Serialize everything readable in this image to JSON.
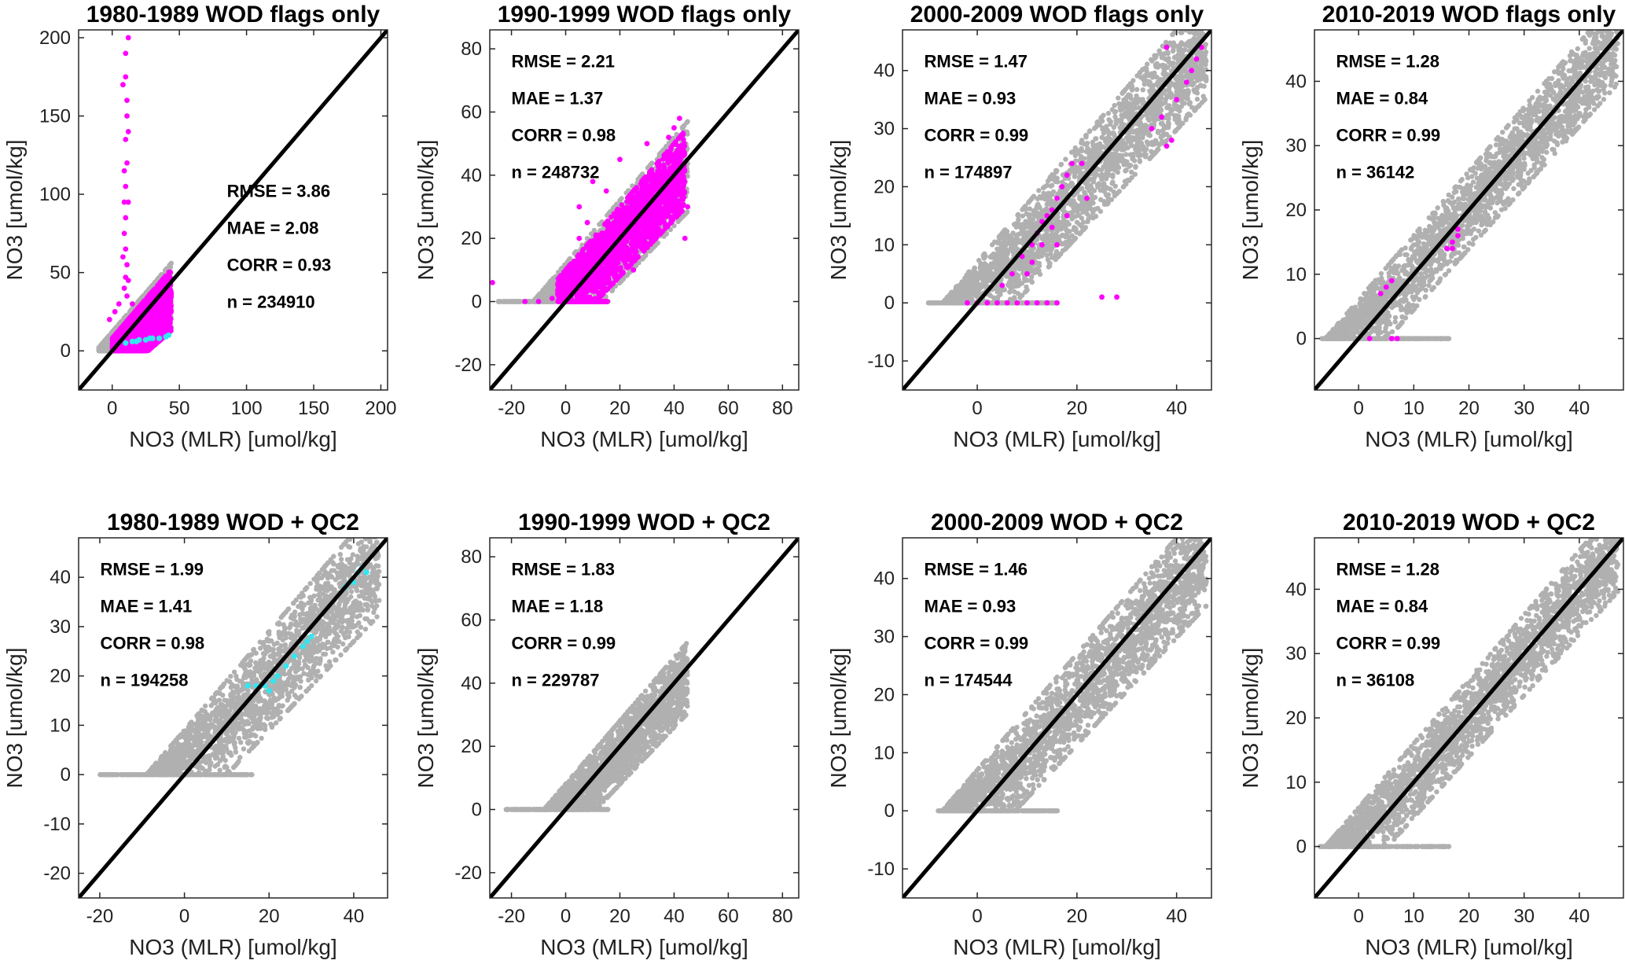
{
  "colors": {
    "background": "#ffffff",
    "all_points": "#b0b0b0",
    "wod_flagged": "#ff00ff",
    "qc_flagged": "#33e6f0",
    "one_to_one_line": "#000000",
    "frame": "#262626"
  },
  "chart_data": [
    {
      "type": "scatter",
      "title": "1980-1989 WOD flags only",
      "xlabel": "NO3 (MLR) [umol/kg]",
      "ylabel": "NO3 [umol/kg]",
      "xlim": [
        -25,
        205
      ],
      "ylim": [
        -25,
        205
      ],
      "xticks": [
        0,
        50,
        100,
        150,
        200
      ],
      "yticks": [
        0,
        50,
        100,
        150,
        200
      ],
      "grid": false,
      "reference_line": "1:1",
      "stats": {
        "rmse": "RMSE = 3.86",
        "mae": "MAE = 2.08",
        "corr": "CORR = 0.93",
        "n": "n = 234910"
      },
      "stats_position": "right",
      "gray_cloud": {
        "x0": -10,
        "x1": 44,
        "lower_slope": 0.75,
        "lower_offset": -18,
        "upper_slope": 1.0,
        "upper_offset": 12,
        "min_y": 0
      },
      "magenta_points": [
        [
          10,
          190
        ],
        [
          10,
          175
        ],
        [
          11,
          160
        ],
        [
          11,
          150
        ],
        [
          10,
          135
        ],
        [
          11,
          120
        ],
        [
          10,
          105
        ],
        [
          9,
          95
        ],
        [
          10,
          85
        ],
        [
          9,
          75
        ],
        [
          10,
          65
        ],
        [
          11,
          55
        ],
        [
          10,
          47
        ],
        [
          9,
          40
        ],
        [
          11,
          35
        ],
        [
          5,
          30
        ],
        [
          15,
          30
        ],
        [
          12,
          200
        ],
        [
          8,
          170
        ],
        [
          12,
          140
        ],
        [
          9,
          115
        ],
        [
          12,
          95
        ],
        [
          8,
          60
        ],
        [
          12,
          45
        ],
        [
          -2,
          20
        ],
        [
          2,
          25
        ]
      ],
      "magenta_cloud": {
        "x0": 0,
        "x1": 44,
        "lower_slope": 0.75,
        "lower_offset": -20,
        "upper_slope": 1.0,
        "upper_offset": 8,
        "min_y": 0
      },
      "cyan_points": [
        [
          10,
          5
        ],
        [
          15,
          6
        ],
        [
          20,
          7
        ],
        [
          25,
          7
        ],
        [
          30,
          8
        ],
        [
          35,
          8
        ],
        [
          40,
          9
        ],
        [
          42,
          10
        ],
        [
          18,
          6
        ],
        [
          28,
          8
        ]
      ]
    },
    {
      "type": "scatter",
      "title": "1990-1999 WOD flags only",
      "xlabel": "NO3 (MLR) [umol/kg]",
      "ylabel": "NO3 [umol/kg]",
      "xlim": [
        -28,
        86
      ],
      "ylim": [
        -28,
        86
      ],
      "xticks": [
        -20,
        0,
        20,
        40,
        60,
        80
      ],
      "yticks": [
        -20,
        0,
        20,
        40,
        60,
        80
      ],
      "grid": false,
      "reference_line": "1:1",
      "stats": {
        "rmse": "RMSE = 2.21",
        "mae": "MAE = 1.37",
        "corr": "CORR = 0.98",
        "n": "n = 248732"
      },
      "stats_position": "top-left",
      "gray_cloud": {
        "x0": -25,
        "x1": 45,
        "lower_slope": 0.9,
        "lower_offset": -12,
        "upper_slope": 1.0,
        "upper_offset": 12,
        "min_y": 0
      },
      "magenta_points": [
        [
          -27,
          6
        ],
        [
          -5,
          1
        ],
        [
          -10,
          0
        ],
        [
          -15,
          0
        ],
        [
          5,
          20
        ],
        [
          10,
          38
        ],
        [
          15,
          35
        ],
        [
          20,
          45
        ],
        [
          30,
          50
        ],
        [
          40,
          55
        ],
        [
          42,
          58
        ],
        [
          38,
          52
        ],
        [
          5,
          30
        ],
        [
          8,
          25
        ],
        [
          45,
          30
        ],
        [
          44,
          20
        ],
        [
          25,
          10
        ],
        [
          35,
          22
        ]
      ],
      "magenta_cloud": {
        "x0": -3,
        "x1": 44,
        "lower_slope": 0.9,
        "lower_offset": -10,
        "upper_slope": 1.0,
        "upper_offset": 10,
        "min_y": 0
      },
      "cyan_points": []
    },
    {
      "type": "scatter",
      "title": "2000-2009 WOD flags only",
      "xlabel": "NO3 (MLR) [umol/kg]",
      "ylabel": "NO3 [umol/kg]",
      "xlim": [
        -15,
        47
      ],
      "ylim": [
        -15,
        47
      ],
      "xticks": [
        0,
        20,
        40
      ],
      "yticks": [
        -10,
        0,
        10,
        20,
        30,
        40
      ],
      "grid": false,
      "reference_line": "1:1",
      "stats": {
        "rmse": "RMSE = 1.47",
        "mae": "MAE = 0.93",
        "corr": "CORR = 0.99",
        "n": "n = 174897"
      },
      "stats_position": "top-left",
      "gray_cloud": {
        "x0": -10,
        "x1": 46,
        "lower_slope": 0.92,
        "lower_offset": -7,
        "upper_slope": 1.0,
        "upper_offset": 7,
        "min_y": 0
      },
      "magenta_points": [
        [
          -2,
          0
        ],
        [
          0,
          0
        ],
        [
          2,
          0
        ],
        [
          4,
          0
        ],
        [
          6,
          0
        ],
        [
          8,
          0
        ],
        [
          10,
          0
        ],
        [
          12,
          0
        ],
        [
          14,
          0
        ],
        [
          16,
          0
        ],
        [
          5,
          3
        ],
        [
          7,
          5
        ],
        [
          9,
          8
        ],
        [
          11,
          10
        ],
        [
          12,
          12
        ],
        [
          13,
          14
        ],
        [
          14,
          15
        ],
        [
          15,
          16
        ],
        [
          16,
          18
        ],
        [
          17,
          20
        ],
        [
          18,
          22
        ],
        [
          19,
          24
        ],
        [
          15,
          13
        ],
        [
          13,
          10
        ],
        [
          11,
          7
        ],
        [
          10,
          5
        ],
        [
          16,
          10
        ],
        [
          18,
          15
        ],
        [
          35,
          30
        ],
        [
          37,
          32
        ],
        [
          40,
          35
        ],
        [
          42,
          38
        ],
        [
          44,
          42
        ],
        [
          43,
          40
        ],
        [
          38,
          44
        ],
        [
          45,
          44
        ],
        [
          39,
          28
        ],
        [
          38,
          27
        ],
        [
          25,
          1
        ],
        [
          28,
          1
        ],
        [
          21,
          24
        ],
        [
          22,
          18
        ]
      ],
      "magenta_cloud": null,
      "cyan_points": []
    },
    {
      "type": "scatter",
      "title": "2010-2019 WOD flags only",
      "xlabel": "NO3 (MLR) [umol/kg]",
      "ylabel": "NO3 [umol/kg]",
      "xlim": [
        -8,
        48
      ],
      "ylim": [
        -8,
        48
      ],
      "xticks": [
        0,
        10,
        20,
        30,
        40
      ],
      "yticks": [
        0,
        10,
        20,
        30,
        40
      ],
      "grid": false,
      "reference_line": "1:1",
      "stats": {
        "rmse": "RMSE = 1.28",
        "mae": "MAE = 0.84",
        "corr": "CORR = 0.99",
        "n": "n = 36142"
      },
      "stats_position": "top-left",
      "gray_cloud": {
        "x0": -7,
        "x1": 47,
        "lower_slope": 0.95,
        "lower_offset": -5,
        "upper_slope": 1.0,
        "upper_offset": 6,
        "min_y": 0
      },
      "magenta_points": [
        [
          4,
          7
        ],
        [
          5,
          8
        ],
        [
          6,
          9
        ],
        [
          17,
          15
        ],
        [
          18,
          16
        ],
        [
          18,
          17
        ],
        [
          17,
          14
        ],
        [
          16,
          14
        ],
        [
          2,
          0
        ],
        [
          6,
          0
        ],
        [
          7,
          0
        ]
      ],
      "magenta_cloud": null,
      "cyan_points": []
    },
    {
      "type": "scatter",
      "title": "1980-1989 WOD + QC2",
      "xlabel": "NO3 (MLR) [umol/kg]",
      "ylabel": "NO3 [umol/kg]",
      "xlim": [
        -25,
        48
      ],
      "ylim": [
        -25,
        48
      ],
      "xticks": [
        -20,
        0,
        20,
        40
      ],
      "yticks": [
        -20,
        -10,
        0,
        10,
        20,
        30,
        40
      ],
      "grid": false,
      "reference_line": "1:1",
      "stats": {
        "rmse": "RMSE = 1.99",
        "mae": "MAE = 1.41",
        "corr": "CORR = 0.98",
        "n": "n = 194258"
      },
      "stats_position": "top-left",
      "gray_cloud": {
        "x0": -20,
        "x1": 46,
        "lower_slope": 0.9,
        "lower_offset": -9,
        "upper_slope": 1.0,
        "upper_offset": 9,
        "min_y": 0
      },
      "magenta_points": [],
      "magenta_cloud": null,
      "cyan_points": [
        [
          15,
          18
        ],
        [
          17,
          18
        ],
        [
          19,
          18
        ],
        [
          20,
          17
        ],
        [
          21,
          19
        ],
        [
          22,
          20
        ],
        [
          24,
          22
        ],
        [
          26,
          24
        ],
        [
          28,
          26
        ],
        [
          29,
          27
        ],
        [
          30,
          28
        ],
        [
          38,
          38
        ],
        [
          39,
          39
        ],
        [
          40,
          39
        ],
        [
          41,
          41
        ],
        [
          42,
          42
        ],
        [
          43,
          41
        ]
      ]
    },
    {
      "type": "scatter",
      "title": "1990-1999 WOD + QC2",
      "xlabel": "NO3 (MLR) [umol/kg]",
      "ylabel": "NO3 [umol/kg]",
      "xlim": [
        -28,
        86
      ],
      "ylim": [
        -28,
        86
      ],
      "xticks": [
        -20,
        0,
        20,
        40,
        60,
        80
      ],
      "yticks": [
        -20,
        0,
        20,
        40,
        60,
        80
      ],
      "grid": false,
      "reference_line": "1:1",
      "stats": {
        "rmse": "RMSE = 1.83",
        "mae": "MAE = 1.18",
        "corr": "CORR = 0.99",
        "n": "n = 229787"
      },
      "stats_position": "top-left",
      "gray_cloud": {
        "x0": -22,
        "x1": 45,
        "lower_slope": 0.9,
        "lower_offset": -10,
        "upper_slope": 1.0,
        "upper_offset": 8,
        "min_y": 0
      },
      "magenta_points": [],
      "magenta_cloud": null,
      "cyan_points": []
    },
    {
      "type": "scatter",
      "title": "2000-2009 WOD + QC2",
      "xlabel": "NO3 (MLR) [umol/kg]",
      "ylabel": "NO3 [umol/kg]",
      "xlim": [
        -15,
        47
      ],
      "ylim": [
        -15,
        47
      ],
      "xticks": [
        0,
        20,
        40
      ],
      "yticks": [
        -10,
        0,
        10,
        20,
        30,
        40
      ],
      "grid": false,
      "reference_line": "1:1",
      "stats": {
        "rmse": "RMSE = 1.46",
        "mae": "MAE = 0.93",
        "corr": "CORR = 0.99",
        "n": "n = 174544"
      },
      "stats_position": "top-left",
      "gray_cloud": {
        "x0": -8,
        "x1": 46,
        "lower_slope": 0.92,
        "lower_offset": -7,
        "upper_slope": 1.0,
        "upper_offset": 7,
        "min_y": 0
      },
      "magenta_points": [],
      "magenta_cloud": null,
      "cyan_points": []
    },
    {
      "type": "scatter",
      "title": "2010-2019 WOD + QC2",
      "xlabel": "NO3 (MLR) [umol/kg]",
      "ylabel": "NO3 [umol/kg]",
      "xlim": [
        -8,
        48
      ],
      "ylim": [
        -8,
        48
      ],
      "xticks": [
        0,
        10,
        20,
        30,
        40
      ],
      "yticks": [
        0,
        10,
        20,
        30,
        40
      ],
      "grid": false,
      "reference_line": "1:1",
      "stats": {
        "rmse": "RMSE = 1.28",
        "mae": "MAE = 0.84",
        "corr": "CORR = 0.99",
        "n": "n = 36108"
      },
      "stats_position": "top-left",
      "gray_cloud": {
        "x0": -7,
        "x1": 47,
        "lower_slope": 0.95,
        "lower_offset": -5,
        "upper_slope": 1.0,
        "upper_offset": 6,
        "min_y": 0
      },
      "magenta_points": [],
      "magenta_cloud": null,
      "cyan_points": []
    }
  ]
}
